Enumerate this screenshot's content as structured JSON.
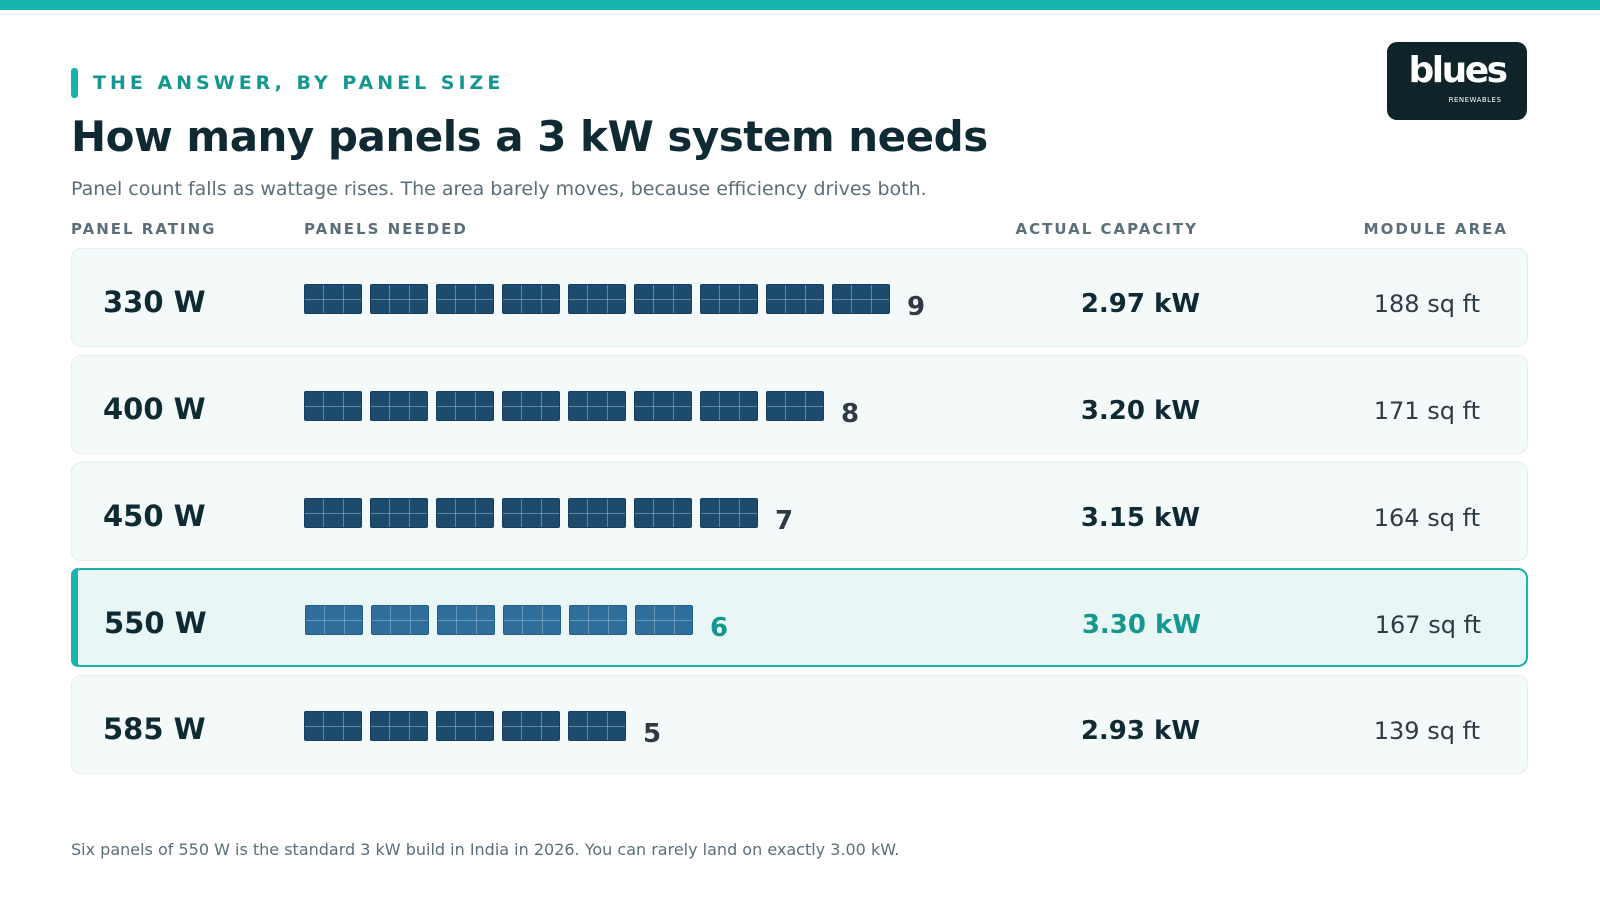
{
  "header": {
    "eyebrow": "THE ANSWER, BY PANEL SIZE",
    "title": "How many panels a 3 kW system needs",
    "subtitle": "Panel count falls as wattage rises. The area barely moves, because efficiency drives both."
  },
  "logo": {
    "word": "blues",
    "sub": "RENEWABLES"
  },
  "columns": {
    "rating": "PANEL RATING",
    "panels": "PANELS NEEDED",
    "capacity": "ACTUAL CAPACITY",
    "area": "MODULE AREA"
  },
  "rows": [
    {
      "rating": "330 W",
      "panels": 9,
      "count": "9",
      "capacity": "2.97 kW",
      "area": "188 sq ft",
      "highlight": false
    },
    {
      "rating": "400 W",
      "panels": 8,
      "count": "8",
      "capacity": "3.20 kW",
      "area": "171 sq ft",
      "highlight": false
    },
    {
      "rating": "450 W",
      "panels": 7,
      "count": "7",
      "capacity": "3.15 kW",
      "area": "164 sq ft",
      "highlight": false
    },
    {
      "rating": "550 W",
      "panels": 6,
      "count": "6",
      "capacity": "3.30 kW",
      "area": "167 sq ft",
      "highlight": true
    },
    {
      "rating": "585 W",
      "panels": 5,
      "count": "5",
      "capacity": "2.93 kW",
      "area": "139 sq ft",
      "highlight": false
    }
  ],
  "footnote": "Six panels of 550 W is the standard 3 kW build in India in 2026. You can rarely land on exactly 3.00 kW.",
  "colors": {
    "accent": "#17b3ad",
    "accent_text": "#139790",
    "panel": "#1d4b6e",
    "panel_highlight": "#2f6d9a",
    "ink": "#102a33"
  },
  "icons": {
    "panel": "solar-panel-icon"
  }
}
